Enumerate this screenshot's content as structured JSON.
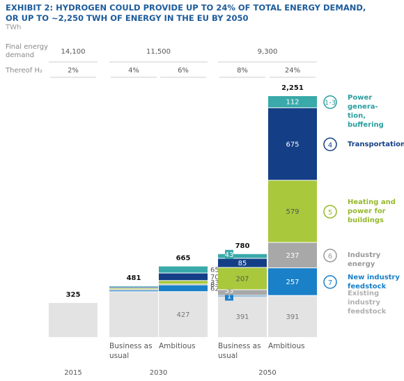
{
  "chart_data": {
    "type": "stacked-bar",
    "title": "EXHIBIT 2: HYDROGEN COULD PROVIDE UP TO 24% OF TOTAL ENERGY DEMAND, OR UP TO ~2,250 TWH OF ENERGY IN THE EU BY 2050",
    "subtitle": "TWh",
    "groups": [
      {
        "label": "2015",
        "categories": [
          null
        ]
      },
      {
        "label": "2030",
        "categories": [
          "Business as usual",
          "Ambitious"
        ]
      },
      {
        "label": "2050",
        "categories": [
          "Business as usual",
          "Ambitious"
        ]
      }
    ],
    "final_energy": {
      "label": "Final energy demand",
      "values": [
        14100,
        11500,
        9300
      ],
      "value_labels": [
        "14,100",
        "11,500",
        "9,300"
      ]
    },
    "h2_share": {
      "label": "Thereof H₂",
      "values": [
        2,
        4,
        6,
        8,
        24
      ],
      "value_labels": [
        "2%",
        "4%",
        "6%",
        "8%",
        "24%"
      ]
    },
    "totals": {
      "values": [
        325,
        481,
        665,
        780,
        2251
      ],
      "value_labels": [
        "325",
        "481",
        "665",
        "780",
        "2,251"
      ]
    },
    "labeled_columns": [
      false,
      false,
      true,
      true,
      true
    ],
    "series": [
      {
        "name": "Existing\nindustry\nfeedstock",
        "color": "#e3e3e3",
        "text_color": "#777777",
        "legend_color": "#b0b0b0",
        "values": [
          325,
          427,
          427,
          391,
          391
        ]
      },
      {
        "name": "New industry\nfeedstock",
        "icon": "7",
        "color": "#1a80c8",
        "text_color": "#ffffff",
        "legend_color": "#1a80c8",
        "values": [
          0,
          14,
          62,
          1,
          257
        ]
      },
      {
        "name": "Industry energy",
        "icon": "6",
        "color": "#a8a8a8",
        "text_color": "#ffffff",
        "legend_color": "#999999",
        "values": [
          0,
          10,
          8,
          53,
          237
        ]
      },
      {
        "name": "Heating and\npower for\nbuildings",
        "icon": "5",
        "color": "#a9c83c",
        "text_color": "#555555",
        "legend_color": "#96b82c",
        "values": [
          0,
          10,
          33,
          207,
          579
        ]
      },
      {
        "name": "Transportation",
        "icon": "4",
        "color": "#143f86",
        "text_color": "#ffffff",
        "legend_color": "#143f86",
        "values": [
          0,
          10,
          70,
          85,
          675
        ]
      },
      {
        "name": "Power genera-\ntion, buffering",
        "icon": "1-3",
        "color": "#3aa9a9",
        "text_color": "#ffffff",
        "legend_color": "#2a9d9d",
        "values": [
          0,
          10,
          65,
          43,
          112
        ]
      }
    ]
  }
}
